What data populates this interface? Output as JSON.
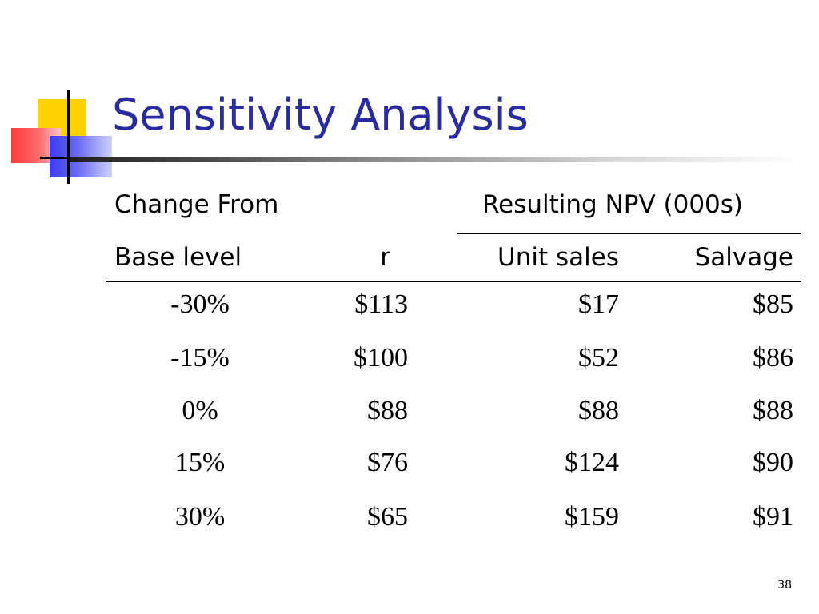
{
  "slide": {
    "title": "Sensitivity Analysis",
    "page_number": "38"
  },
  "table": {
    "header_row1": {
      "change_from": "Change From",
      "resulting_npv": "Resulting NPV (000s)"
    },
    "header_row2": {
      "base_level": "Base level",
      "r": "r",
      "unit_sales": "Unit sales",
      "salvage": "Salvage"
    },
    "rows": [
      {
        "base": "-30%",
        "r": "$113",
        "unit_sales": "$17",
        "salvage": "$85"
      },
      {
        "base": "-15%",
        "r": "$100",
        "unit_sales": "$52",
        "salvage": "$86"
      },
      {
        "base": "0%",
        "r": "$88",
        "unit_sales": "$88",
        "salvage": "$88"
      },
      {
        "base": "15%",
        "r": "$76",
        "unit_sales": "$124",
        "salvage": "$90"
      },
      {
        "base": "30%",
        "r": "$65",
        "unit_sales": "$159",
        "salvage": "$91"
      }
    ]
  },
  "colors": {
    "title": "#2b2ba1",
    "logo_yellow": "#ffd200",
    "logo_red": "#ff3b3b",
    "logo_blue": "#3c3cf0"
  }
}
